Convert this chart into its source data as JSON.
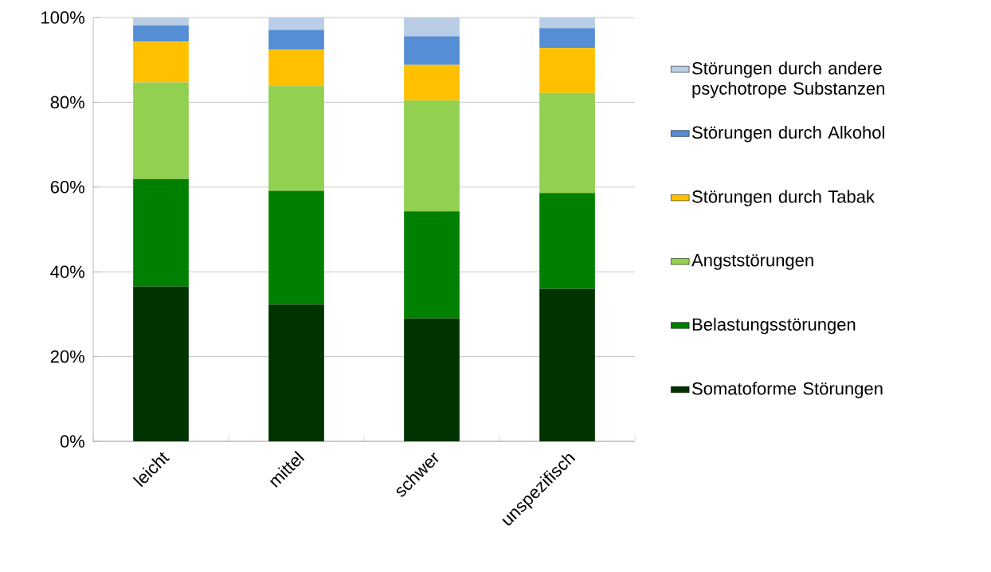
{
  "chart_data": {
    "type": "bar",
    "stacked": true,
    "categories": [
      "leicht",
      "mittel",
      "schwer",
      "unspezifisch"
    ],
    "series": [
      {
        "name": "Somatoforme Störungen",
        "color": "#003300",
        "values": [
          36.5,
          32.3,
          29.0,
          36.0
        ]
      },
      {
        "name": "Belastungsstörungen",
        "color": "#008000",
        "values": [
          25.4,
          26.8,
          25.3,
          22.6
        ]
      },
      {
        "name": "Angststörungen",
        "color": "#92d050",
        "values": [
          22.8,
          24.7,
          26.1,
          23.6
        ]
      },
      {
        "name": "Störungen durch Tabak",
        "color": "#ffc000",
        "values": [
          9.6,
          8.7,
          8.4,
          10.6
        ]
      },
      {
        "name": "Störungen durch Alkohol",
        "color": "#558ed5",
        "values": [
          3.8,
          4.6,
          6.8,
          4.7
        ]
      },
      {
        "name": "Störungen durch andere psychotrope Substanzen",
        "color": "#b9cde5",
        "values": [
          1.9,
          2.9,
          4.4,
          2.5
        ]
      }
    ],
    "ylim": [
      0,
      100
    ],
    "yticks": [
      {
        "value": 0,
        "label": "0%"
      },
      {
        "value": 20,
        "label": "20%"
      },
      {
        "value": 40,
        "label": "40%"
      },
      {
        "value": 60,
        "label": "60%"
      },
      {
        "value": 80,
        "label": "80%"
      },
      {
        "value": 100,
        "label": "100%"
      }
    ],
    "grid": "y",
    "legend": "right"
  }
}
